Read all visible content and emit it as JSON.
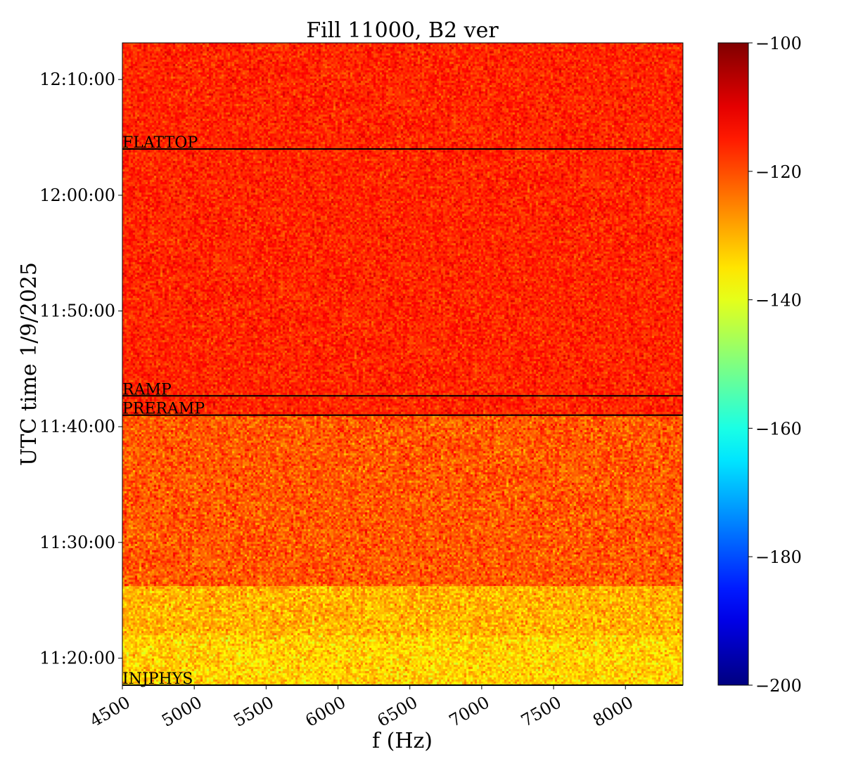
{
  "chart_data": {
    "type": "heatmap",
    "title": "Fill 11000, B2 ver",
    "xlabel": "f (Hz)",
    "ylabel": "UTC time 1/9/2025",
    "xlim": [
      4500,
      8400
    ],
    "ylim_seconds_of_day": [
      40660,
      43990
    ],
    "x_ticks": [
      {
        "value": 4500,
        "label": "4500"
      },
      {
        "value": 5000,
        "label": "5000"
      },
      {
        "value": 5500,
        "label": "5500"
      },
      {
        "value": 6000,
        "label": "6000"
      },
      {
        "value": 6500,
        "label": "6500"
      },
      {
        "value": 7000,
        "label": "7000"
      },
      {
        "value": 7500,
        "label": "7500"
      },
      {
        "value": 8000,
        "label": "8000"
      }
    ],
    "y_ticks": [
      {
        "value": 41400,
        "label": "11:30:00"
      },
      {
        "value": 42000,
        "label": "11:40:00"
      },
      {
        "value": 42600,
        "label": "11:50:00"
      },
      {
        "value": 43200,
        "label": "12:00:00"
      },
      {
        "value": 43800,
        "label": "12:10:00"
      },
      {
        "value": 40800,
        "label": "11:20:00"
      }
    ],
    "colorbar": {
      "colormap": "jet",
      "min": -200,
      "max": -100,
      "ticks": [
        {
          "value": -100,
          "label": "−100"
        },
        {
          "value": -120,
          "label": "−120"
        },
        {
          "value": -140,
          "label": "−140"
        },
        {
          "value": -160,
          "label": "−160"
        },
        {
          "value": -180,
          "label": "−180"
        },
        {
          "value": -200,
          "label": "−200"
        }
      ]
    },
    "markers": [
      {
        "label": "INJPHYS",
        "value": 40660
      },
      {
        "label": "PRERAMP",
        "value": 42060
      },
      {
        "label": "RAMP",
        "value": 42160
      },
      {
        "label": "FLATTOP",
        "value": 43440
      }
    ],
    "regions": [
      {
        "from": 40660,
        "to": 40920,
        "level": -133,
        "noise": 4
      },
      {
        "from": 40920,
        "to": 41180,
        "level": -130,
        "noise": 4
      },
      {
        "from": 41180,
        "to": 42060,
        "level": -121,
        "noise": 4
      },
      {
        "from": 42060,
        "to": 43990,
        "level": -116,
        "noise": 3
      }
    ]
  }
}
